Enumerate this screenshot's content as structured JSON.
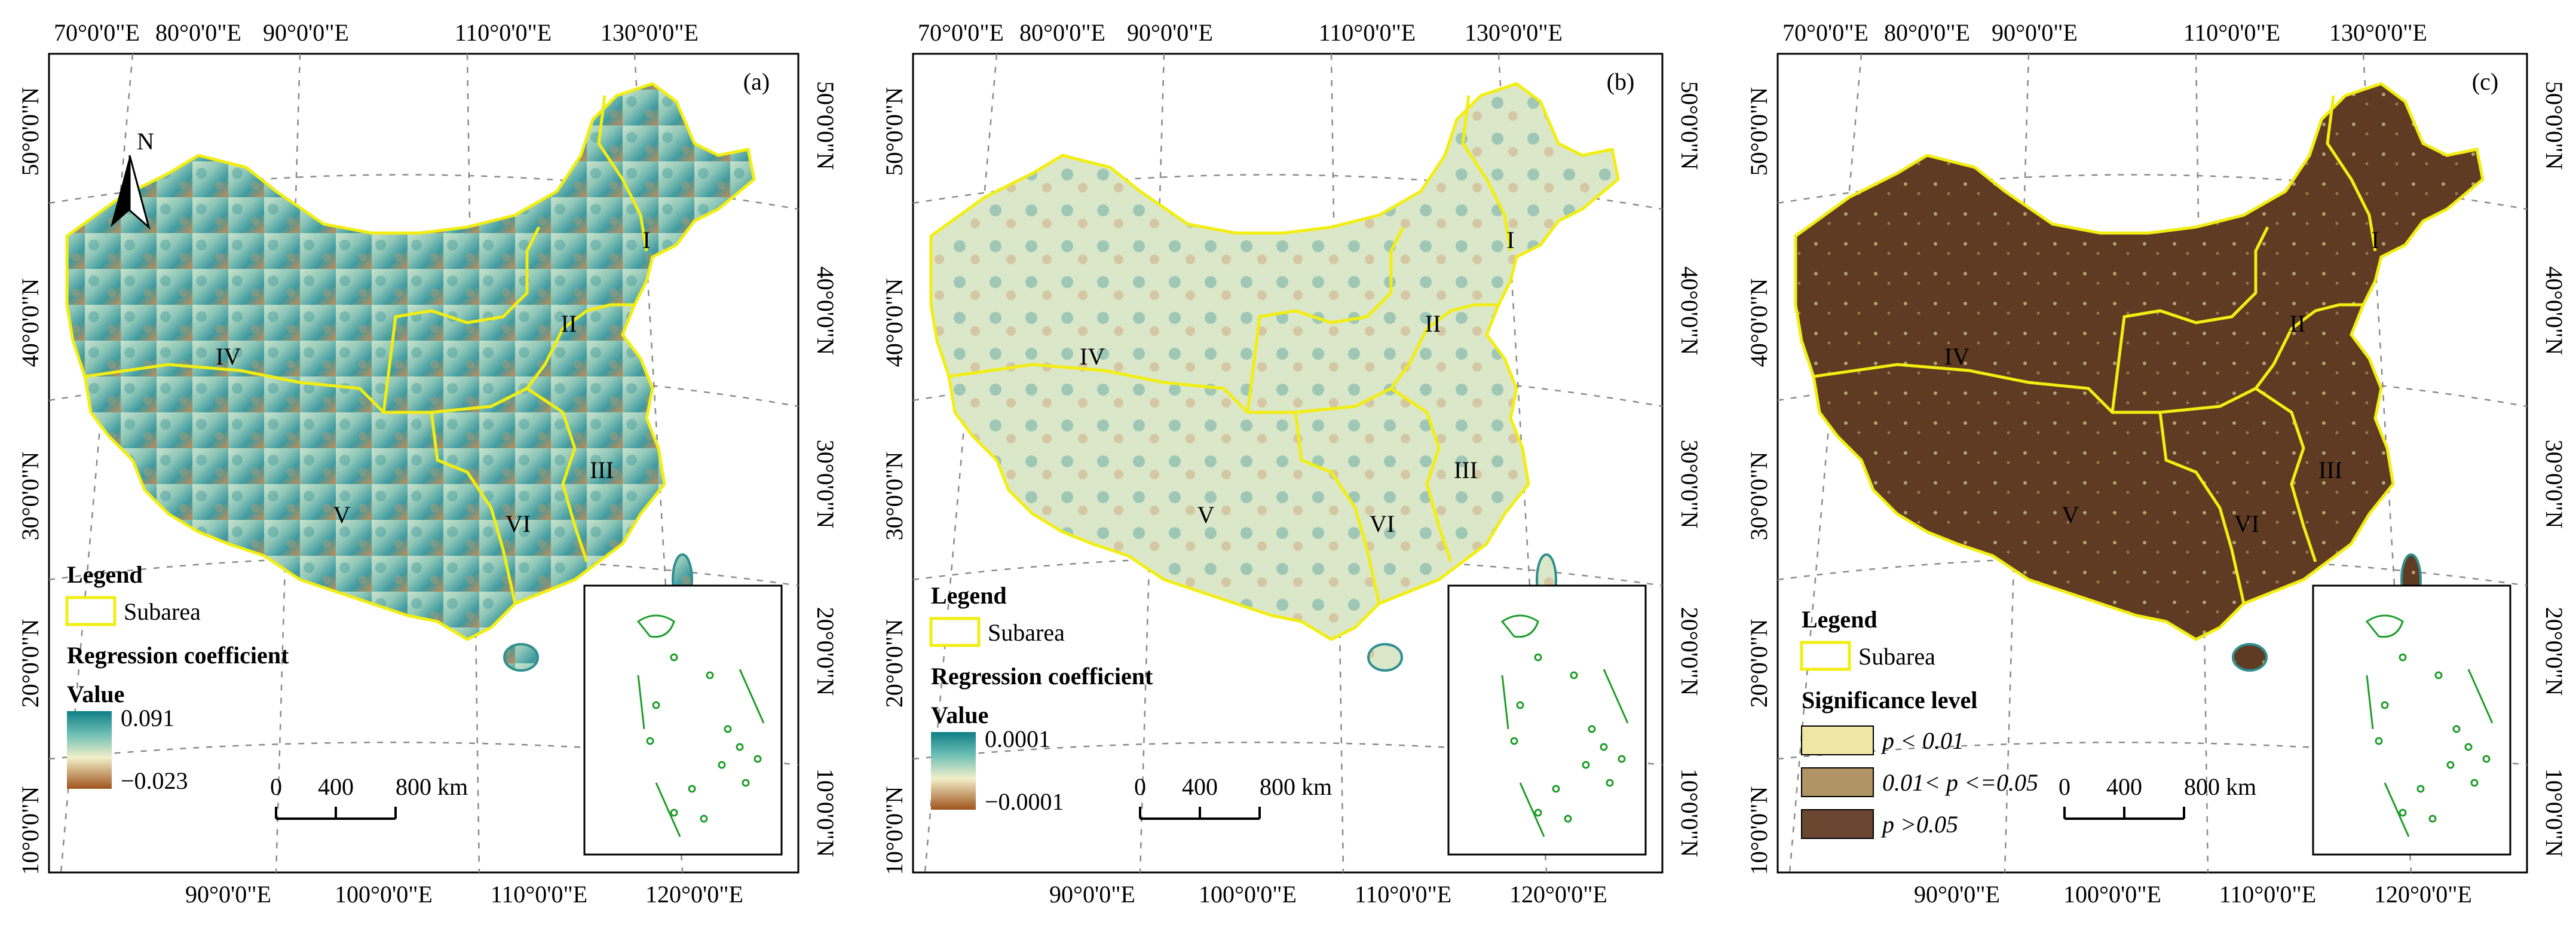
{
  "panels": [
    {
      "label": "(a)",
      "top_ticks": [
        "70°0'0\"E",
        "80°0'0\"E",
        "90°0'0\"E",
        "110°0'0\"E",
        "130°0'0\"E"
      ],
      "bottom_ticks": [
        "90°0'0\"E",
        "100°0'0\"E",
        "110°0'0\"E",
        "120°0'0\"E"
      ],
      "left_ticks": [
        "50°0'0\"N",
        "40°0'0\"N",
        "30°0'0\"N",
        "20°0'0\"N",
        "10°0'0\"N"
      ],
      "right_ticks": [
        "50°0'0\"N",
        "40°0'0\"N",
        "30°0'0\"N",
        "20°0'0\"N",
        "10°0'0\"N"
      ],
      "regions": [
        "I",
        "II",
        "III",
        "IV",
        "V",
        "VI"
      ],
      "north": "N",
      "legend": {
        "title": "Legend",
        "subarea": "Subarea",
        "heading": "Regression coefficient",
        "value_label": "Value",
        "max": "0.091",
        "min": "−0.023",
        "ramp_colors": [
          "#0f7f86",
          "#6fc0b5",
          "#f2efc9",
          "#a0541d"
        ]
      },
      "scale": {
        "ticks": [
          "0",
          "400",
          "800 km"
        ]
      }
    },
    {
      "label": "(b)",
      "top_ticks": [
        "70°0'0\"E",
        "80°0'0\"E",
        "90°0'0\"E",
        "110°0'0\"E",
        "130°0'0\"E"
      ],
      "bottom_ticks": [
        "90°0'0\"E",
        "100°0'0\"E",
        "110°0'0\"E",
        "120°0'0\"E"
      ],
      "left_ticks": [
        "50°0'0\"N",
        "40°0'0\"N",
        "30°0'0\"N",
        "20°0'0\"N",
        "10°0'0\"N"
      ],
      "right_ticks": [
        "50°0'0\"N",
        "40°0'0\"N",
        "30°0'0\"N",
        "20°0'0\"N",
        "10°0'0\"N"
      ],
      "regions": [
        "I",
        "II",
        "III",
        "IV",
        "V",
        "VI"
      ],
      "legend": {
        "title": "Legend",
        "subarea": "Subarea",
        "heading": "Regression coefficient",
        "value_label": "Value",
        "max": "0.0001",
        "min": "−0.0001",
        "ramp_colors": [
          "#0f7f86",
          "#6fc0b5",
          "#f2efc9",
          "#a0541d"
        ]
      },
      "scale": {
        "ticks": [
          "0",
          "400",
          "800 km"
        ]
      }
    },
    {
      "label": "(c)",
      "top_ticks": [
        "70°0'0\"E",
        "80°0'0\"E",
        "90°0'0\"E",
        "110°0'0\"E",
        "130°0'0\"E"
      ],
      "bottom_ticks": [
        "90°0'0\"E",
        "100°0'0\"E",
        "110°0'0\"E",
        "120°0'0\"E"
      ],
      "left_ticks": [
        "50°0'0\"N",
        "40°0'0\"N",
        "30°0'0\"N",
        "20°0'0\"N",
        "10°0'0\"N"
      ],
      "right_ticks": [
        "50°0'0\"N",
        "40°0'0\"N",
        "30°0'0\"N",
        "20°0'0\"N",
        "10°0'0\"N"
      ],
      "regions": [
        "I",
        "II",
        "III",
        "IV",
        "V",
        "VI"
      ],
      "legend": {
        "title": "Legend",
        "subarea": "Subarea",
        "heading": "Significance level",
        "classes": [
          {
            "text": "p < 0.01",
            "color": "#efe6a6"
          },
          {
            "text": "0.01< p <=0.05",
            "color": "#b09466"
          },
          {
            "text": "p >0.05",
            "color": "#6b4630"
          }
        ]
      },
      "scale": {
        "ticks": [
          "0",
          "400",
          "800 km"
        ]
      }
    }
  ],
  "colors": {
    "subarea_outline": "#f2ee12",
    "coast": "#2f8f8f",
    "islands": "#1f9d2a",
    "map_a_fill": "#9fcfc0",
    "map_b_fill": "#cfe0c2",
    "map_c_fill": "#5e3b22"
  }
}
